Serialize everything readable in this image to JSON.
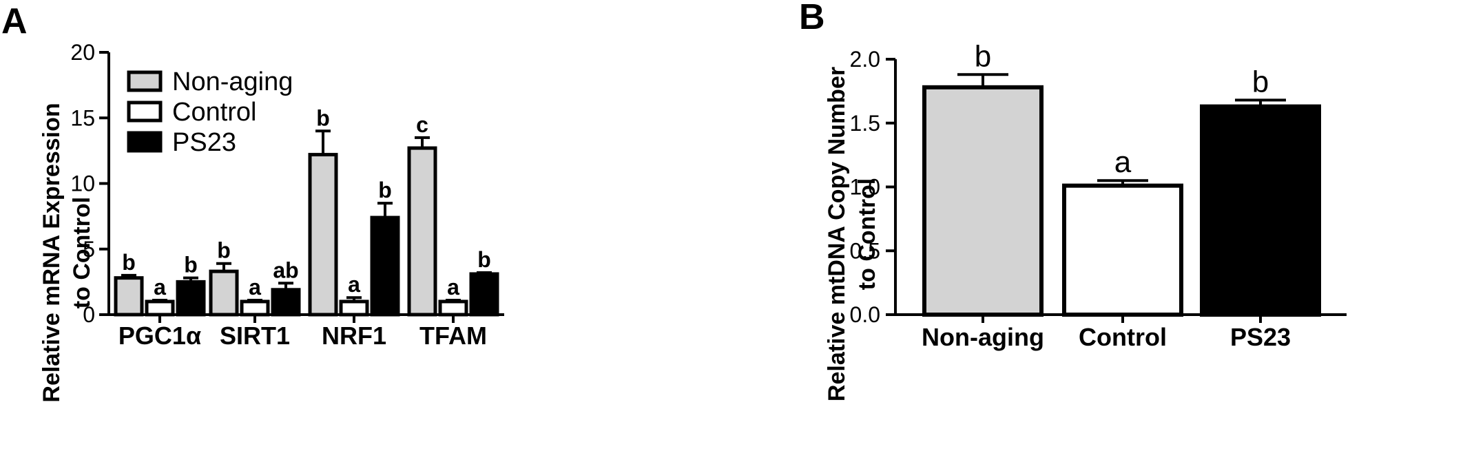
{
  "colors": {
    "nonaging": "#d3d3d3",
    "control": "#ffffff",
    "ps23": "#000000",
    "stroke": "#000000"
  },
  "panels": [
    {
      "letter": "A",
      "chart_data": {
        "type": "bar",
        "categories": [
          "PGC1α",
          "SIRT1",
          "NRF1",
          "TFAM"
        ],
        "series": [
          {
            "name": "Non-aging",
            "values": [
              2.8,
              3.3,
              12.2,
              12.7
            ],
            "errors": [
              0.2,
              0.6,
              1.8,
              0.8
            ],
            "sig": [
              "b",
              "b",
              "b",
              "c"
            ]
          },
          {
            "name": "Control",
            "values": [
              1.0,
              1.0,
              1.0,
              1.0
            ],
            "errors": [
              0.1,
              0.1,
              0.3,
              0.1
            ],
            "sig": [
              "a",
              "a",
              "a",
              "a"
            ]
          },
          {
            "name": "PS23",
            "values": [
              2.5,
              1.9,
              7.4,
              3.1
            ],
            "errors": [
              0.3,
              0.5,
              1.1,
              0.1
            ],
            "sig": [
              "b",
              "ab",
              "b",
              "b"
            ]
          }
        ],
        "ylabel_lines": [
          "Relative mRNA Expression",
          "to Control"
        ],
        "ylim": [
          0,
          20
        ],
        "yticks": [
          0,
          5,
          10,
          15,
          20
        ],
        "ytick_labels": [
          "0",
          "5",
          "10",
          "15",
          "20"
        ],
        "legend": "top-left",
        "grid": false
      }
    },
    {
      "letter": "B",
      "chart_data": {
        "type": "bar",
        "categories": [
          "Non-aging",
          "Control",
          "PS23"
        ],
        "values": [
          1.78,
          1.01,
          1.63
        ],
        "errors": [
          0.1,
          0.04,
          0.05
        ],
        "sig": [
          "b",
          "a",
          "b"
        ],
        "ylabel_lines": [
          "Relative mtDNA Copy Number",
          "to Control"
        ],
        "ylim": [
          0,
          2.0
        ],
        "yticks": [
          0,
          0.5,
          1.0,
          1.5,
          2.0
        ],
        "ytick_labels": [
          "0.0",
          "0.5",
          "1.0",
          "1.5",
          "2.0"
        ],
        "grid": false
      }
    }
  ]
}
